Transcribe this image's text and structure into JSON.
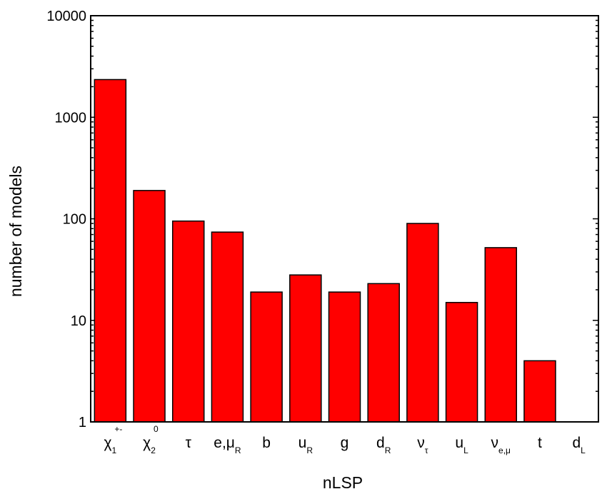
{
  "chart_data": {
    "type": "bar",
    "scale": "log",
    "xlabel": "nLSP",
    "ylabel": "number of models",
    "ylim": [
      1,
      10000
    ],
    "yticks": [
      {
        "value": 1,
        "label": "1"
      },
      {
        "value": 10,
        "label": "10"
      },
      {
        "value": 100,
        "label": "100"
      },
      {
        "value": 1000,
        "label": "1000"
      },
      {
        "value": 10000,
        "label": "10000"
      }
    ],
    "bar_color": "#ff0000",
    "grid": false,
    "categories": [
      {
        "main": "χ",
        "sub": "1",
        "sup": "+-"
      },
      {
        "main": "χ",
        "sub": "2",
        "sup": "0"
      },
      {
        "main": "τ",
        "sub": "",
        "sup": ""
      },
      {
        "main": "e,μ",
        "sub": "R",
        "sup": ""
      },
      {
        "main": "b",
        "sub": "",
        "sup": ""
      },
      {
        "main": "u",
        "sub": "R",
        "sup": ""
      },
      {
        "main": "g",
        "sub": "",
        "sup": ""
      },
      {
        "main": "d",
        "sub": "R",
        "sup": ""
      },
      {
        "main": "ν",
        "sub": "τ",
        "sup": ""
      },
      {
        "main": "u",
        "sub": "L",
        "sup": ""
      },
      {
        "main": "ν",
        "sub": "e,μ",
        "sup": ""
      },
      {
        "main": "t",
        "sub": "",
        "sup": ""
      },
      {
        "main": "d",
        "sub": "L",
        "sup": ""
      }
    ],
    "values": [
      2350,
      190,
      95,
      74,
      19,
      28,
      19,
      23,
      90,
      15,
      52,
      4,
      1
    ]
  }
}
